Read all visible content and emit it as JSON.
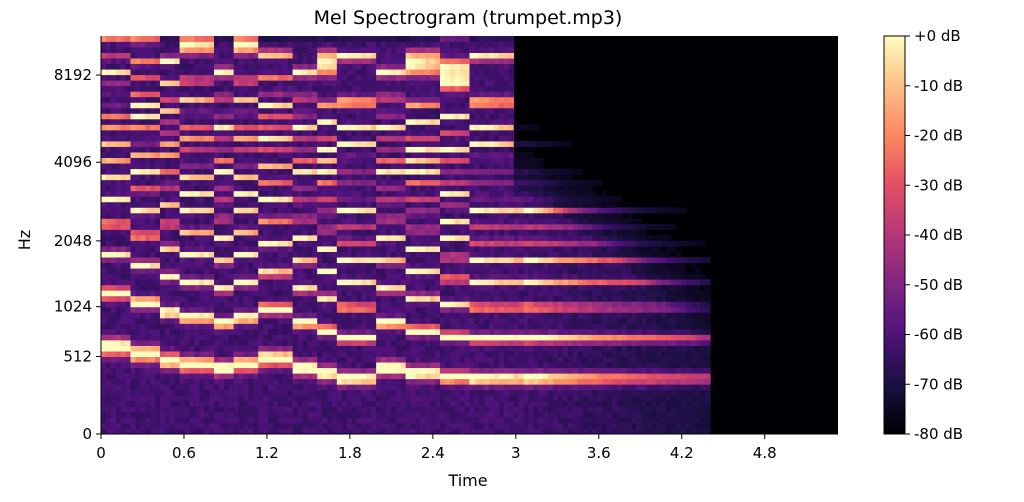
{
  "chart_data": {
    "type": "heatmap",
    "title": "Mel Spectrogram (trumpet.mp3)",
    "xlabel": "Time",
    "ylabel": "Hz",
    "x_ticks": [
      "0",
      "0.6",
      "1.2",
      "1.8",
      "2.4",
      "3",
      "3.6",
      "4.2",
      "4.8"
    ],
    "x_tick_values": [
      0,
      0.6,
      1.2,
      1.8,
      2.4,
      3.0,
      3.6,
      4.2,
      4.8
    ],
    "xlim": [
      0,
      5.33
    ],
    "y_scale": "mel",
    "y_ticks": [
      "0",
      "512",
      "1024",
      "2048",
      "4096",
      "8192"
    ],
    "y_tick_values": [
      0,
      512,
      1024,
      2048,
      4096,
      8192
    ],
    "ylim": [
      0,
      11025
    ],
    "colorbar": {
      "colormap": "magma",
      "range": [
        -80,
        0
      ],
      "ticks": [
        "+0 dB",
        "-10 dB",
        "-20 dB",
        "-30 dB",
        "-40 dB",
        "-50 dB",
        "-60 dB",
        "-70 dB",
        "-80 dB"
      ],
      "tick_values": [
        0,
        -10,
        -20,
        -30,
        -40,
        -50,
        -60,
        -70,
        -80
      ]
    },
    "sound_end_time": 4.4,
    "notes": [
      {
        "start": 0.0,
        "end": 0.22,
        "f0": 600
      },
      {
        "start": 0.22,
        "end": 0.42,
        "f0": 540
      },
      {
        "start": 0.42,
        "end": 0.58,
        "f0": 480
      },
      {
        "start": 0.58,
        "end": 0.82,
        "f0": 450
      },
      {
        "start": 0.82,
        "end": 0.96,
        "f0": 420
      },
      {
        "start": 0.96,
        "end": 1.12,
        "f0": 450
      },
      {
        "start": 1.12,
        "end": 1.38,
        "f0": 500
      },
      {
        "start": 1.38,
        "end": 1.55,
        "f0": 420
      },
      {
        "start": 1.55,
        "end": 1.72,
        "f0": 380
      },
      {
        "start": 1.72,
        "end": 2.0,
        "f0": 340
      },
      {
        "start": 2.0,
        "end": 2.22,
        "f0": 420
      },
      {
        "start": 2.22,
        "end": 2.45,
        "f0": 380
      },
      {
        "start": 2.45,
        "end": 2.65,
        "f0": 350
      },
      {
        "start": 2.65,
        "end": 3.05,
        "f0": 340
      },
      {
        "start": 3.05,
        "end": 4.4,
        "f0": 340
      }
    ]
  }
}
